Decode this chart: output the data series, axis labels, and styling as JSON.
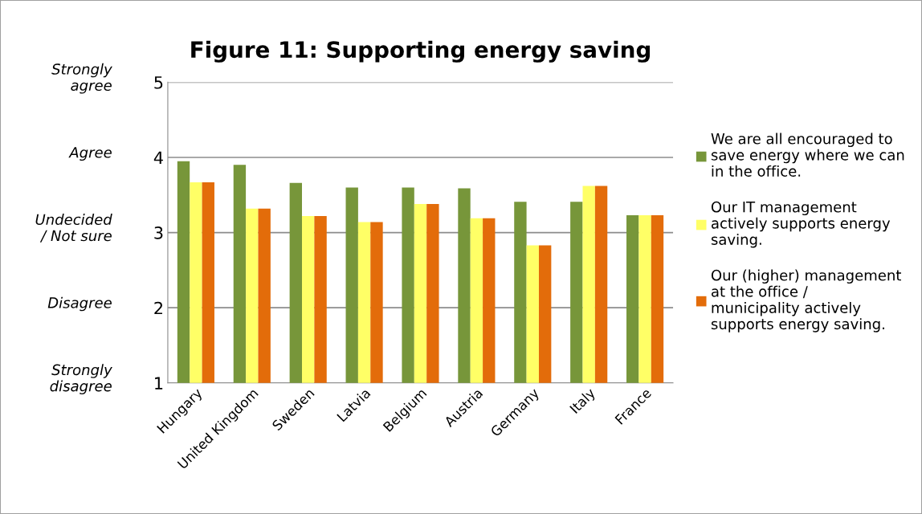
{
  "chart_data": {
    "type": "bar",
    "title": "Figure 11: Supporting energy saving",
    "categories": [
      "Hungary",
      "United Kingdom",
      "Sweden",
      "Latvia",
      "Belgium",
      "Austria",
      "Germany",
      "Italy",
      "France"
    ],
    "series": [
      {
        "name": "We are all encouraged to save energy where we can in the office.",
        "color": "#77963a",
        "values": [
          3.95,
          3.9,
          3.66,
          3.6,
          3.6,
          3.59,
          3.41,
          3.41,
          3.23
        ]
      },
      {
        "name": "Our IT management actively supports energy saving.",
        "color": "#ffff66",
        "values": [
          3.67,
          3.32,
          3.22,
          3.14,
          3.38,
          3.19,
          2.83,
          3.62,
          3.23
        ]
      },
      {
        "name": "Our (higher) management at the office / municipality actively supports energy saving.",
        "color": "#e36c0a",
        "values": [
          3.67,
          3.32,
          3.22,
          3.14,
          3.38,
          3.19,
          2.83,
          3.62,
          3.23
        ]
      }
    ],
    "ylim": [
      1,
      5
    ],
    "yticks": [
      1,
      2,
      3,
      4,
      5
    ],
    "grid": "y",
    "legend": "right",
    "annotations": [
      "Strongly\ndisagree",
      "Disagree",
      "Undecided\n/ Not sure",
      "Agree",
      "Strongly\nagree"
    ]
  }
}
